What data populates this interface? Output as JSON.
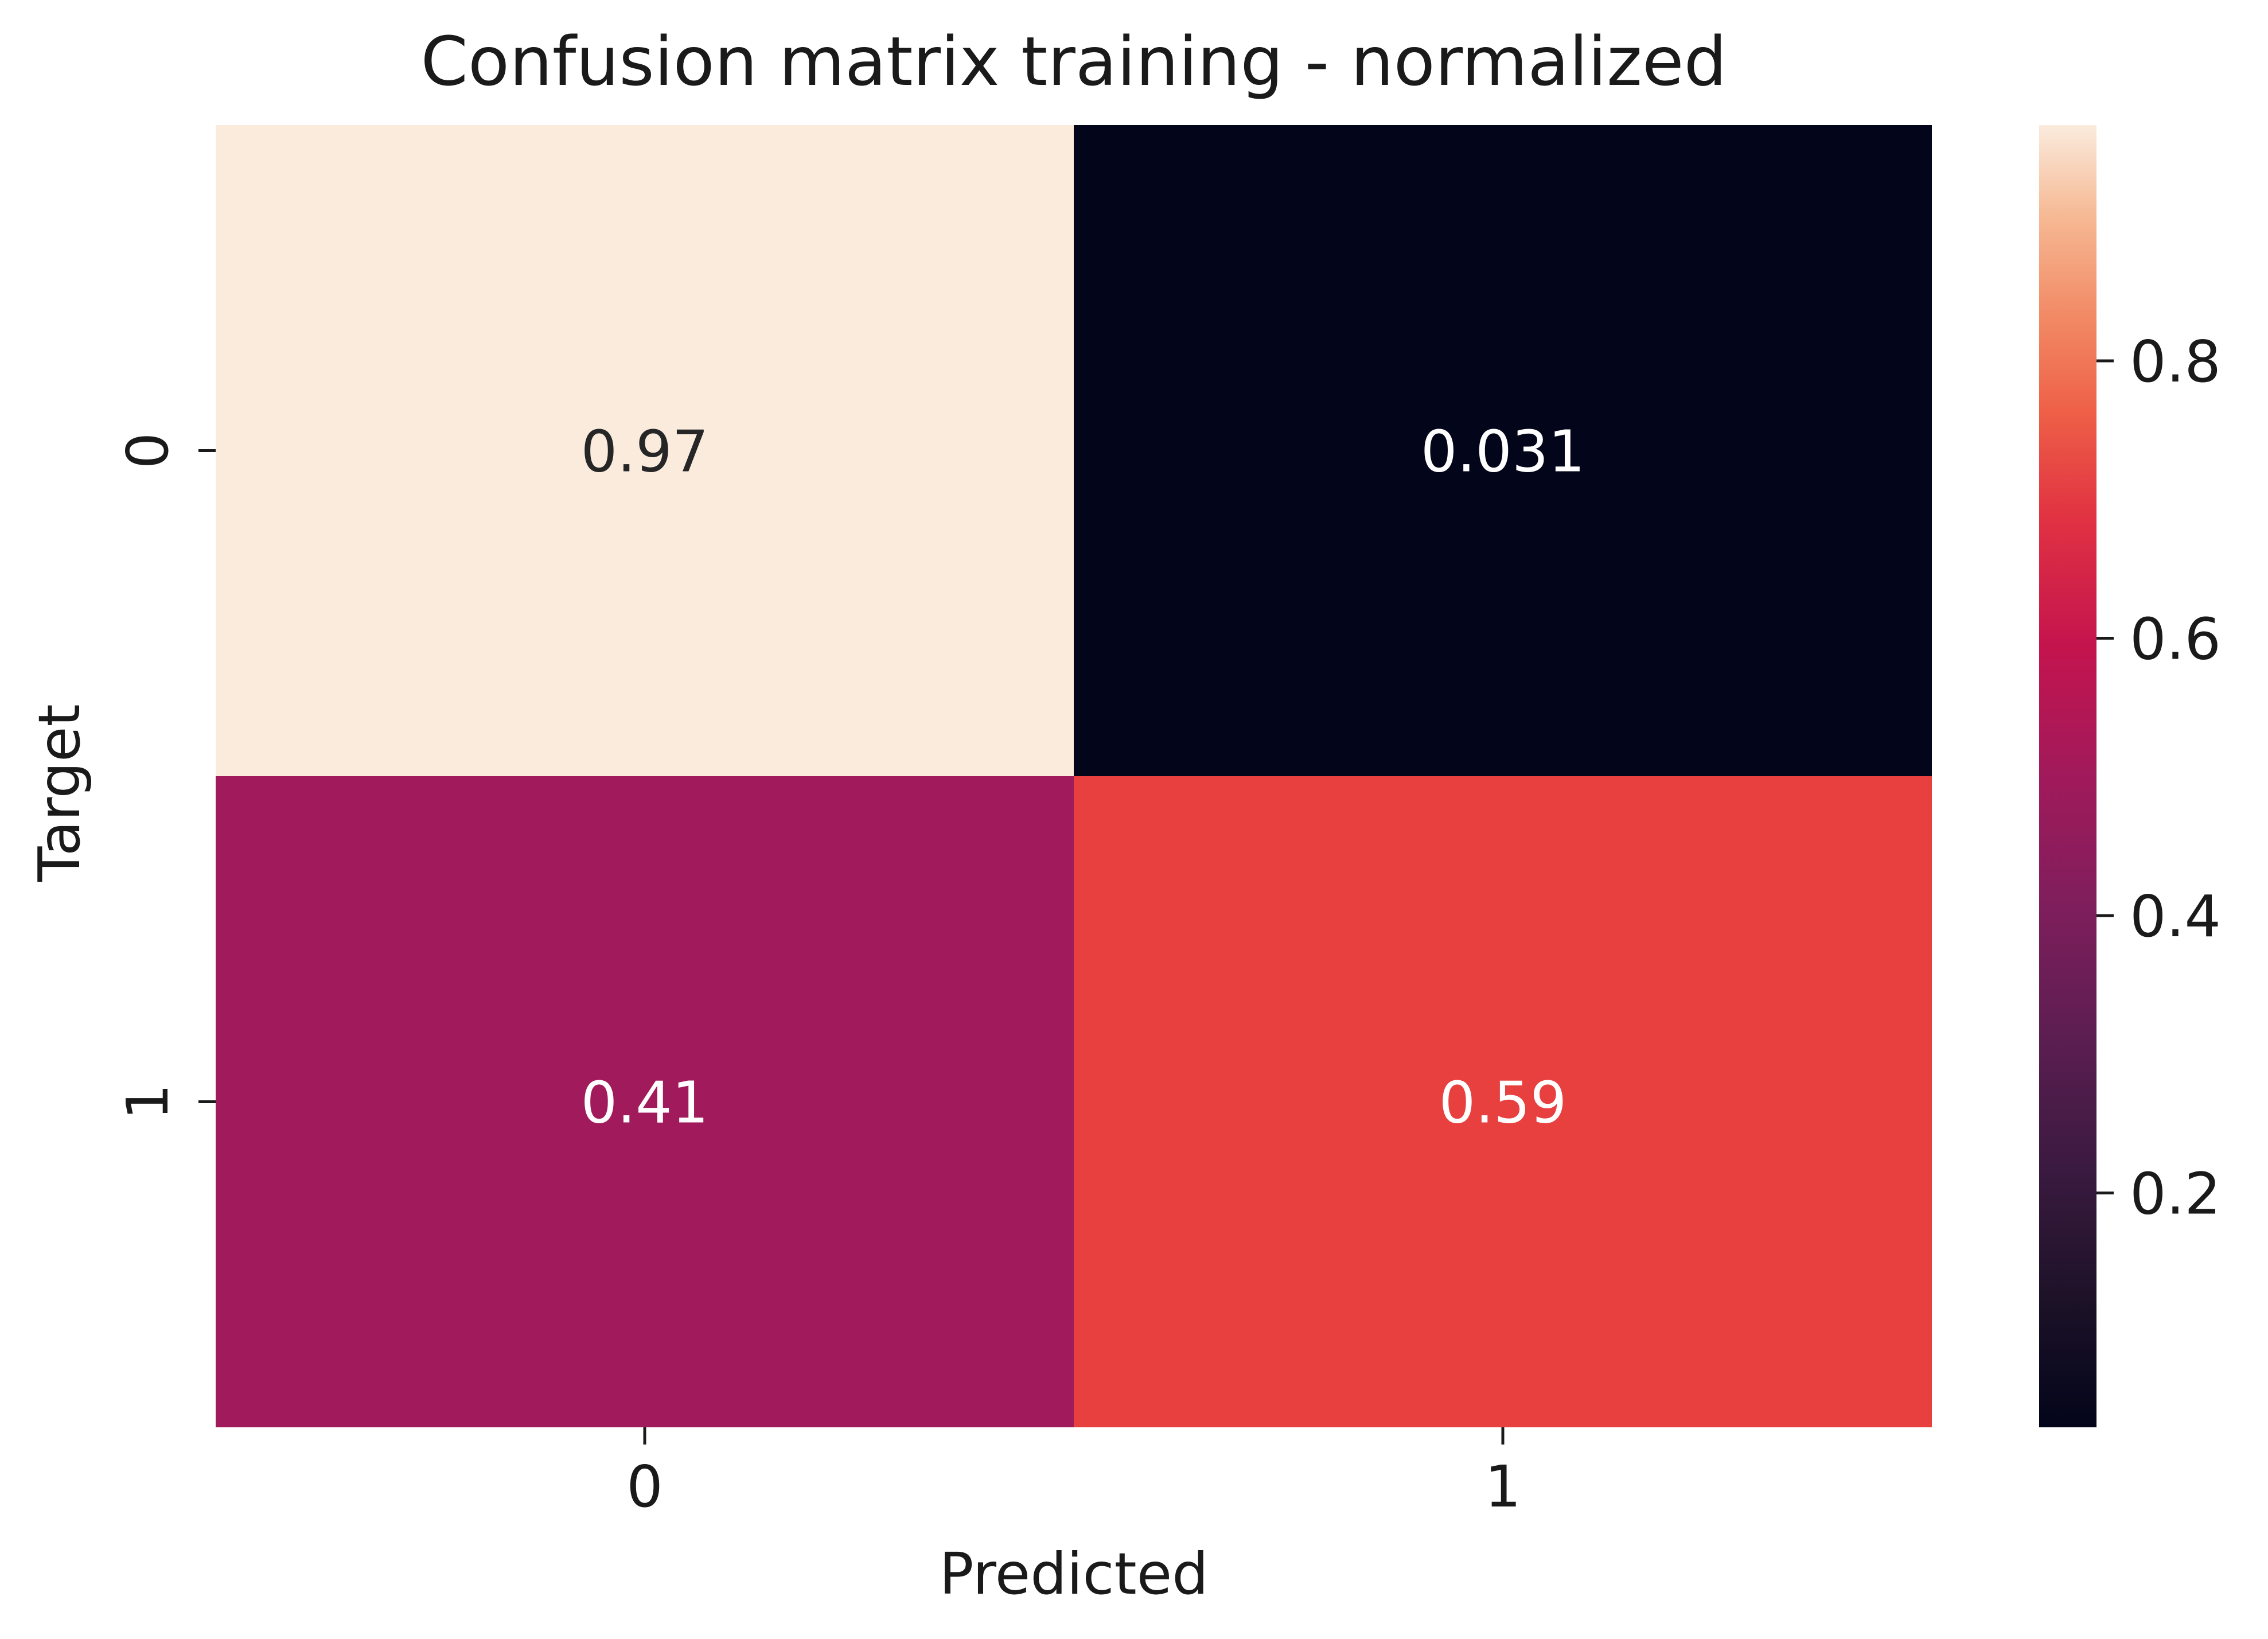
{
  "chart_data": {
    "type": "heatmap",
    "title": "Confusion matrix training - normalized",
    "xlabel": "Predicted",
    "ylabel": "Target",
    "x_categories": [
      "0",
      "1"
    ],
    "y_categories": [
      "0",
      "1"
    ],
    "values": [
      [
        0.97,
        0.031
      ],
      [
        0.41,
        0.59
      ]
    ],
    "cell_labels": [
      [
        "0.97",
        "0.031"
      ],
      [
        "0.41",
        "0.59"
      ]
    ],
    "cell_colors": [
      [
        "#FAEBDD",
        "#03051A"
      ],
      [
        "#A11A5B",
        "#E83F3F"
      ]
    ],
    "colorbar": {
      "range": [
        0.031,
        0.97
      ],
      "ticks": [
        0.2,
        0.4,
        0.6,
        0.8
      ],
      "tick_labels": [
        "0.2",
        "0.4",
        "0.6",
        "0.8"
      ],
      "colormap": "rocket"
    }
  }
}
